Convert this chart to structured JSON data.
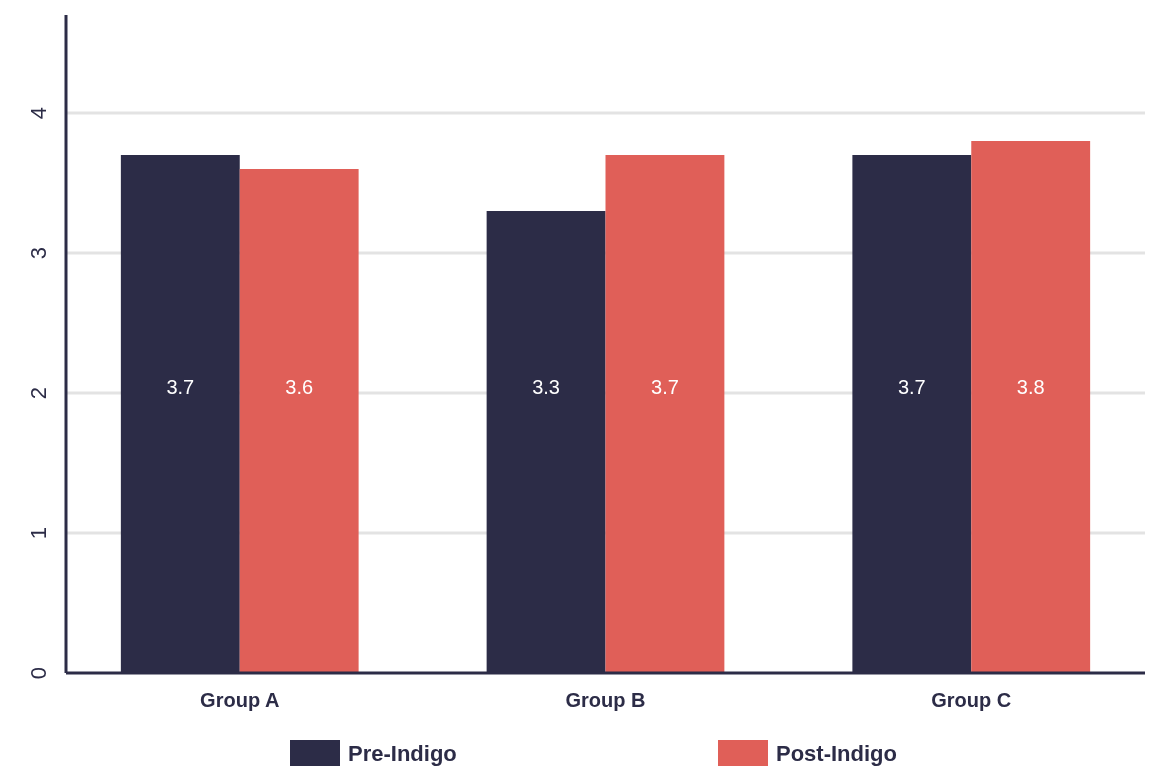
{
  "chart_data": {
    "type": "bar",
    "categories": [
      "Group A",
      "Group B",
      "Group C"
    ],
    "series": [
      {
        "name": "Pre-Indigo",
        "color": "#2c2c47",
        "values": [
          3.7,
          3.3,
          3.7
        ]
      },
      {
        "name": "Post-Indigo",
        "color": "#e05f58",
        "values": [
          3.6,
          3.7,
          3.8
        ]
      }
    ],
    "ylim": [
      0,
      4.7
    ],
    "yticks": [
      0,
      1,
      2,
      3,
      4
    ],
    "grid": "y",
    "data_labels": true,
    "legend": "bottom"
  }
}
